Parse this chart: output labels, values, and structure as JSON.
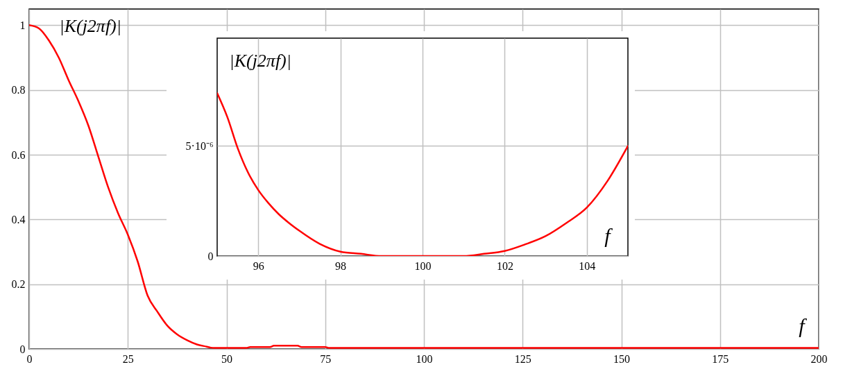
{
  "chart_data": [
    {
      "type": "line",
      "xlabel": "f",
      "ylabel": "|K(j2πf)|",
      "xlim": [
        0,
        200
      ],
      "ylim": [
        0,
        1.05
      ],
      "xticks": [
        0,
        25,
        50,
        75,
        100,
        125,
        150,
        175,
        200
      ],
      "yticks": [
        0,
        0.2,
        0.4,
        0.6,
        0.8,
        1
      ],
      "grid": true,
      "line_style": "solid",
      "x": [
        0,
        2.5,
        5,
        7.5,
        10,
        12.5,
        15,
        17.5,
        20,
        22.5,
        25,
        27.5,
        30,
        32.5,
        35,
        37.5,
        40,
        42.5,
        45,
        46,
        47,
        55,
        56,
        61,
        62,
        68,
        69,
        75,
        76,
        100,
        125,
        150,
        175,
        200
      ],
      "series": [
        {
          "color": "#ff0000",
          "values": [
            1,
            0.99,
            0.953,
            0.9,
            0.83,
            0.765,
            0.69,
            0.595,
            0.5,
            0.42,
            0.353,
            0.27,
            0.165,
            0.115,
            0.072,
            0.045,
            0.027,
            0.014,
            0.007,
            0.004,
            0.003,
            0.003,
            0.006,
            0.006,
            0.01,
            0.01,
            0.006,
            0.006,
            0.003,
            0.003,
            0.003,
            0.003,
            0.003,
            0.003
          ]
        }
      ]
    },
    {
      "type": "line",
      "xlabel": "f",
      "ylabel": "|K(j2πf)|",
      "xlim": [
        95,
        105
      ],
      "ylim": [
        0,
        9.9e-06
      ],
      "xticks": [
        96,
        98,
        100,
        102,
        104
      ],
      "yticks": [
        0,
        {
          "value": 5e-06,
          "label": "5·10⁻⁶"
        }
      ],
      "grid": true,
      "line_style": "solid",
      "x": [
        95,
        95.25,
        95.5,
        95.75,
        96,
        96.25,
        96.5,
        96.75,
        97,
        97.5,
        98,
        98.5,
        99,
        100,
        101,
        101.5,
        102,
        102.5,
        103,
        103.5,
        104,
        104.5,
        105
      ],
      "series": [
        {
          "color": "#ff0000",
          "values": [
            7.4e-06,
            6.3e-06,
            4.9e-06,
            3.8e-06,
            3e-06,
            2.4e-06,
            1.9e-06,
            1.5e-06,
            1.15e-06,
            5.5e-07,
            2e-07,
            1e-07,
            0,
            0,
            0,
            1e-07,
            2.3e-07,
            5.3e-07,
            9.1e-07,
            1.5e-06,
            2.2e-06,
            3.4e-06,
            5e-06
          ]
        }
      ]
    }
  ]
}
